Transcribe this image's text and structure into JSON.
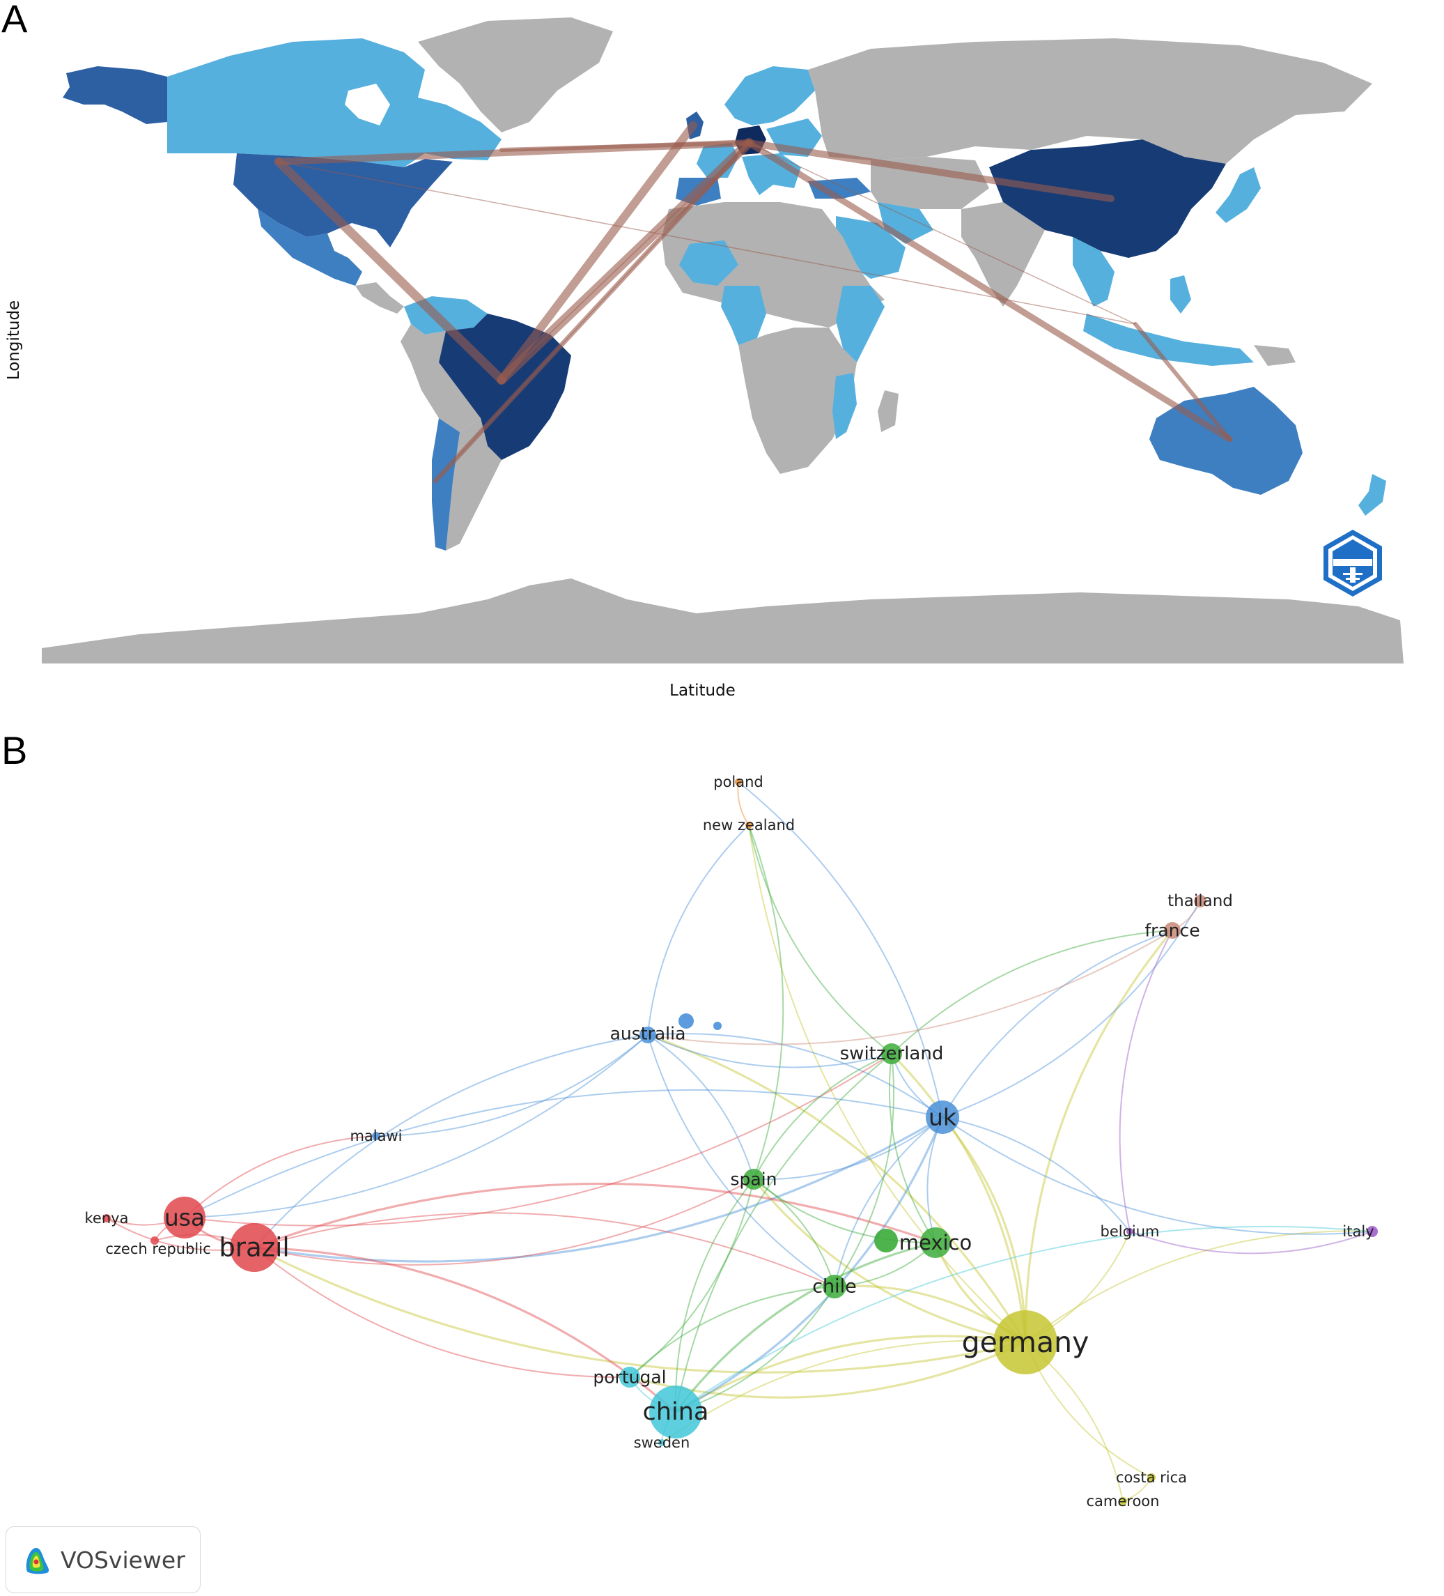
{
  "panel_a": {
    "letter": "A",
    "xlabel": "Latitude",
    "ylabel": "Longitude",
    "logo_icon": "bibliometrix-logo-icon",
    "colors": {
      "ocean": "#ffffff",
      "no_data": "#b2b2b2",
      "low": "#56b0de",
      "mid": "#3d7fc0",
      "high": "#2d5fa3",
      "top": "#173b75",
      "link": "#9a5c4c"
    },
    "collaboration_links": [
      {
        "from": "Germany",
        "to": "USA"
      },
      {
        "from": "Germany",
        "to": "Brazil"
      },
      {
        "from": "Germany",
        "to": "China"
      },
      {
        "from": "Germany",
        "to": "Australia"
      },
      {
        "from": "Germany",
        "to": "Canada"
      },
      {
        "from": "Germany",
        "to": "Chile"
      },
      {
        "from": "UK",
        "to": "Brazil"
      },
      {
        "from": "USA",
        "to": "Brazil"
      },
      {
        "from": "Australia",
        "to": "Indonesia"
      }
    ]
  },
  "panel_b": {
    "letter": "B",
    "badge_text": "VOSviewer",
    "badge_icon": "vosviewer-logo-icon",
    "clusters": {
      "red": "#e0474c",
      "blue": "#4a90d9",
      "green": "#3cab3a",
      "yellow": "#c6c632",
      "cyan": "#42c7d8",
      "orange": "#e98a2f",
      "brown": "#c98a78",
      "purple": "#9a56c8"
    },
    "nodes": [
      {
        "label": "poland",
        "cluster": "orange"
      },
      {
        "label": "new zealand",
        "cluster": "orange"
      },
      {
        "label": "thailand",
        "cluster": "brown"
      },
      {
        "label": "france",
        "cluster": "brown"
      },
      {
        "label": "australia",
        "cluster": "blue"
      },
      {
        "label": "switzerland",
        "cluster": "green"
      },
      {
        "label": "uk",
        "cluster": "blue"
      },
      {
        "label": "malawi",
        "cluster": "blue"
      },
      {
        "label": "spain",
        "cluster": "green"
      },
      {
        "label": "kenya",
        "cluster": "red"
      },
      {
        "label": "usa",
        "cluster": "red"
      },
      {
        "label": "czech republic",
        "cluster": "red"
      },
      {
        "label": "brazil",
        "cluster": "red"
      },
      {
        "label": "belgium",
        "cluster": "purple"
      },
      {
        "label": "italy",
        "cluster": "purple"
      },
      {
        "label": "mexico",
        "cluster": "green"
      },
      {
        "label": "chile",
        "cluster": "green"
      },
      {
        "label": "germany",
        "cluster": "yellow"
      },
      {
        "label": "portugal",
        "cluster": "cyan"
      },
      {
        "label": "china",
        "cluster": "cyan"
      },
      {
        "label": "sweden",
        "cluster": "cyan"
      },
      {
        "label": "costa rica",
        "cluster": "yellow"
      },
      {
        "label": "cameroon",
        "cluster": "yellow"
      }
    ],
    "links": [
      [
        "germany",
        "uk"
      ],
      [
        "germany",
        "mexico"
      ],
      [
        "germany",
        "chile"
      ],
      [
        "germany",
        "spain"
      ],
      [
        "germany",
        "china"
      ],
      [
        "germany",
        "brazil"
      ],
      [
        "germany",
        "switzerland"
      ],
      [
        "germany",
        "france"
      ],
      [
        "germany",
        "belgium"
      ],
      [
        "germany",
        "italy"
      ],
      [
        "germany",
        "costa rica"
      ],
      [
        "germany",
        "cameroon"
      ],
      [
        "germany",
        "australia"
      ],
      [
        "germany",
        "portugal"
      ],
      [
        "germany",
        "sweden"
      ],
      [
        "germany",
        "new zealand"
      ],
      [
        "uk",
        "australia"
      ],
      [
        "uk",
        "switzerland"
      ],
      [
        "uk",
        "mexico"
      ],
      [
        "uk",
        "spain"
      ],
      [
        "uk",
        "chile"
      ],
      [
        "uk",
        "china"
      ],
      [
        "uk",
        "italy"
      ],
      [
        "uk",
        "france"
      ],
      [
        "uk",
        "thailand"
      ],
      [
        "uk",
        "belgium"
      ],
      [
        "uk",
        "usa"
      ],
      [
        "uk",
        "brazil"
      ],
      [
        "uk",
        "poland"
      ],
      [
        "australia",
        "usa"
      ],
      [
        "australia",
        "brazil"
      ],
      [
        "australia",
        "malawi"
      ],
      [
        "australia",
        "switzerland"
      ],
      [
        "australia",
        "spain"
      ],
      [
        "australia",
        "chile"
      ],
      [
        "australia",
        "new zealand"
      ],
      [
        "usa",
        "brazil"
      ],
      [
        "usa",
        "kenya"
      ],
      [
        "usa",
        "czech republic"
      ],
      [
        "usa",
        "malawi"
      ],
      [
        "usa",
        "switzerland"
      ],
      [
        "brazil",
        "kenya"
      ],
      [
        "brazil",
        "czech republic"
      ],
      [
        "brazil",
        "china"
      ],
      [
        "brazil",
        "spain"
      ],
      [
        "brazil",
        "mexico"
      ],
      [
        "brazil",
        "portugal"
      ],
      [
        "brazil",
        "chile"
      ],
      [
        "switzerland",
        "mexico"
      ],
      [
        "switzerland",
        "chile"
      ],
      [
        "switzerland",
        "spain"
      ],
      [
        "switzerland",
        "france"
      ],
      [
        "switzerland",
        "china"
      ],
      [
        "switzerland",
        "new zealand"
      ],
      [
        "spain",
        "mexico"
      ],
      [
        "spain",
        "chile"
      ],
      [
        "spain",
        "china"
      ],
      [
        "spain",
        "portugal"
      ],
      [
        "spain",
        "new zealand"
      ],
      [
        "mexico",
        "chile"
      ],
      [
        "mexico",
        "china"
      ],
      [
        "chile",
        "china"
      ],
      [
        "chile",
        "portugal"
      ],
      [
        "china",
        "portugal"
      ],
      [
        "china",
        "sweden"
      ],
      [
        "china",
        "italy"
      ],
      [
        "france",
        "thailand"
      ],
      [
        "france",
        "australia"
      ],
      [
        "belgium",
        "italy"
      ],
      [
        "belgium",
        "france"
      ],
      [
        "poland",
        "new zealand"
      ],
      [
        "costa rica",
        "cameroon"
      ]
    ]
  }
}
